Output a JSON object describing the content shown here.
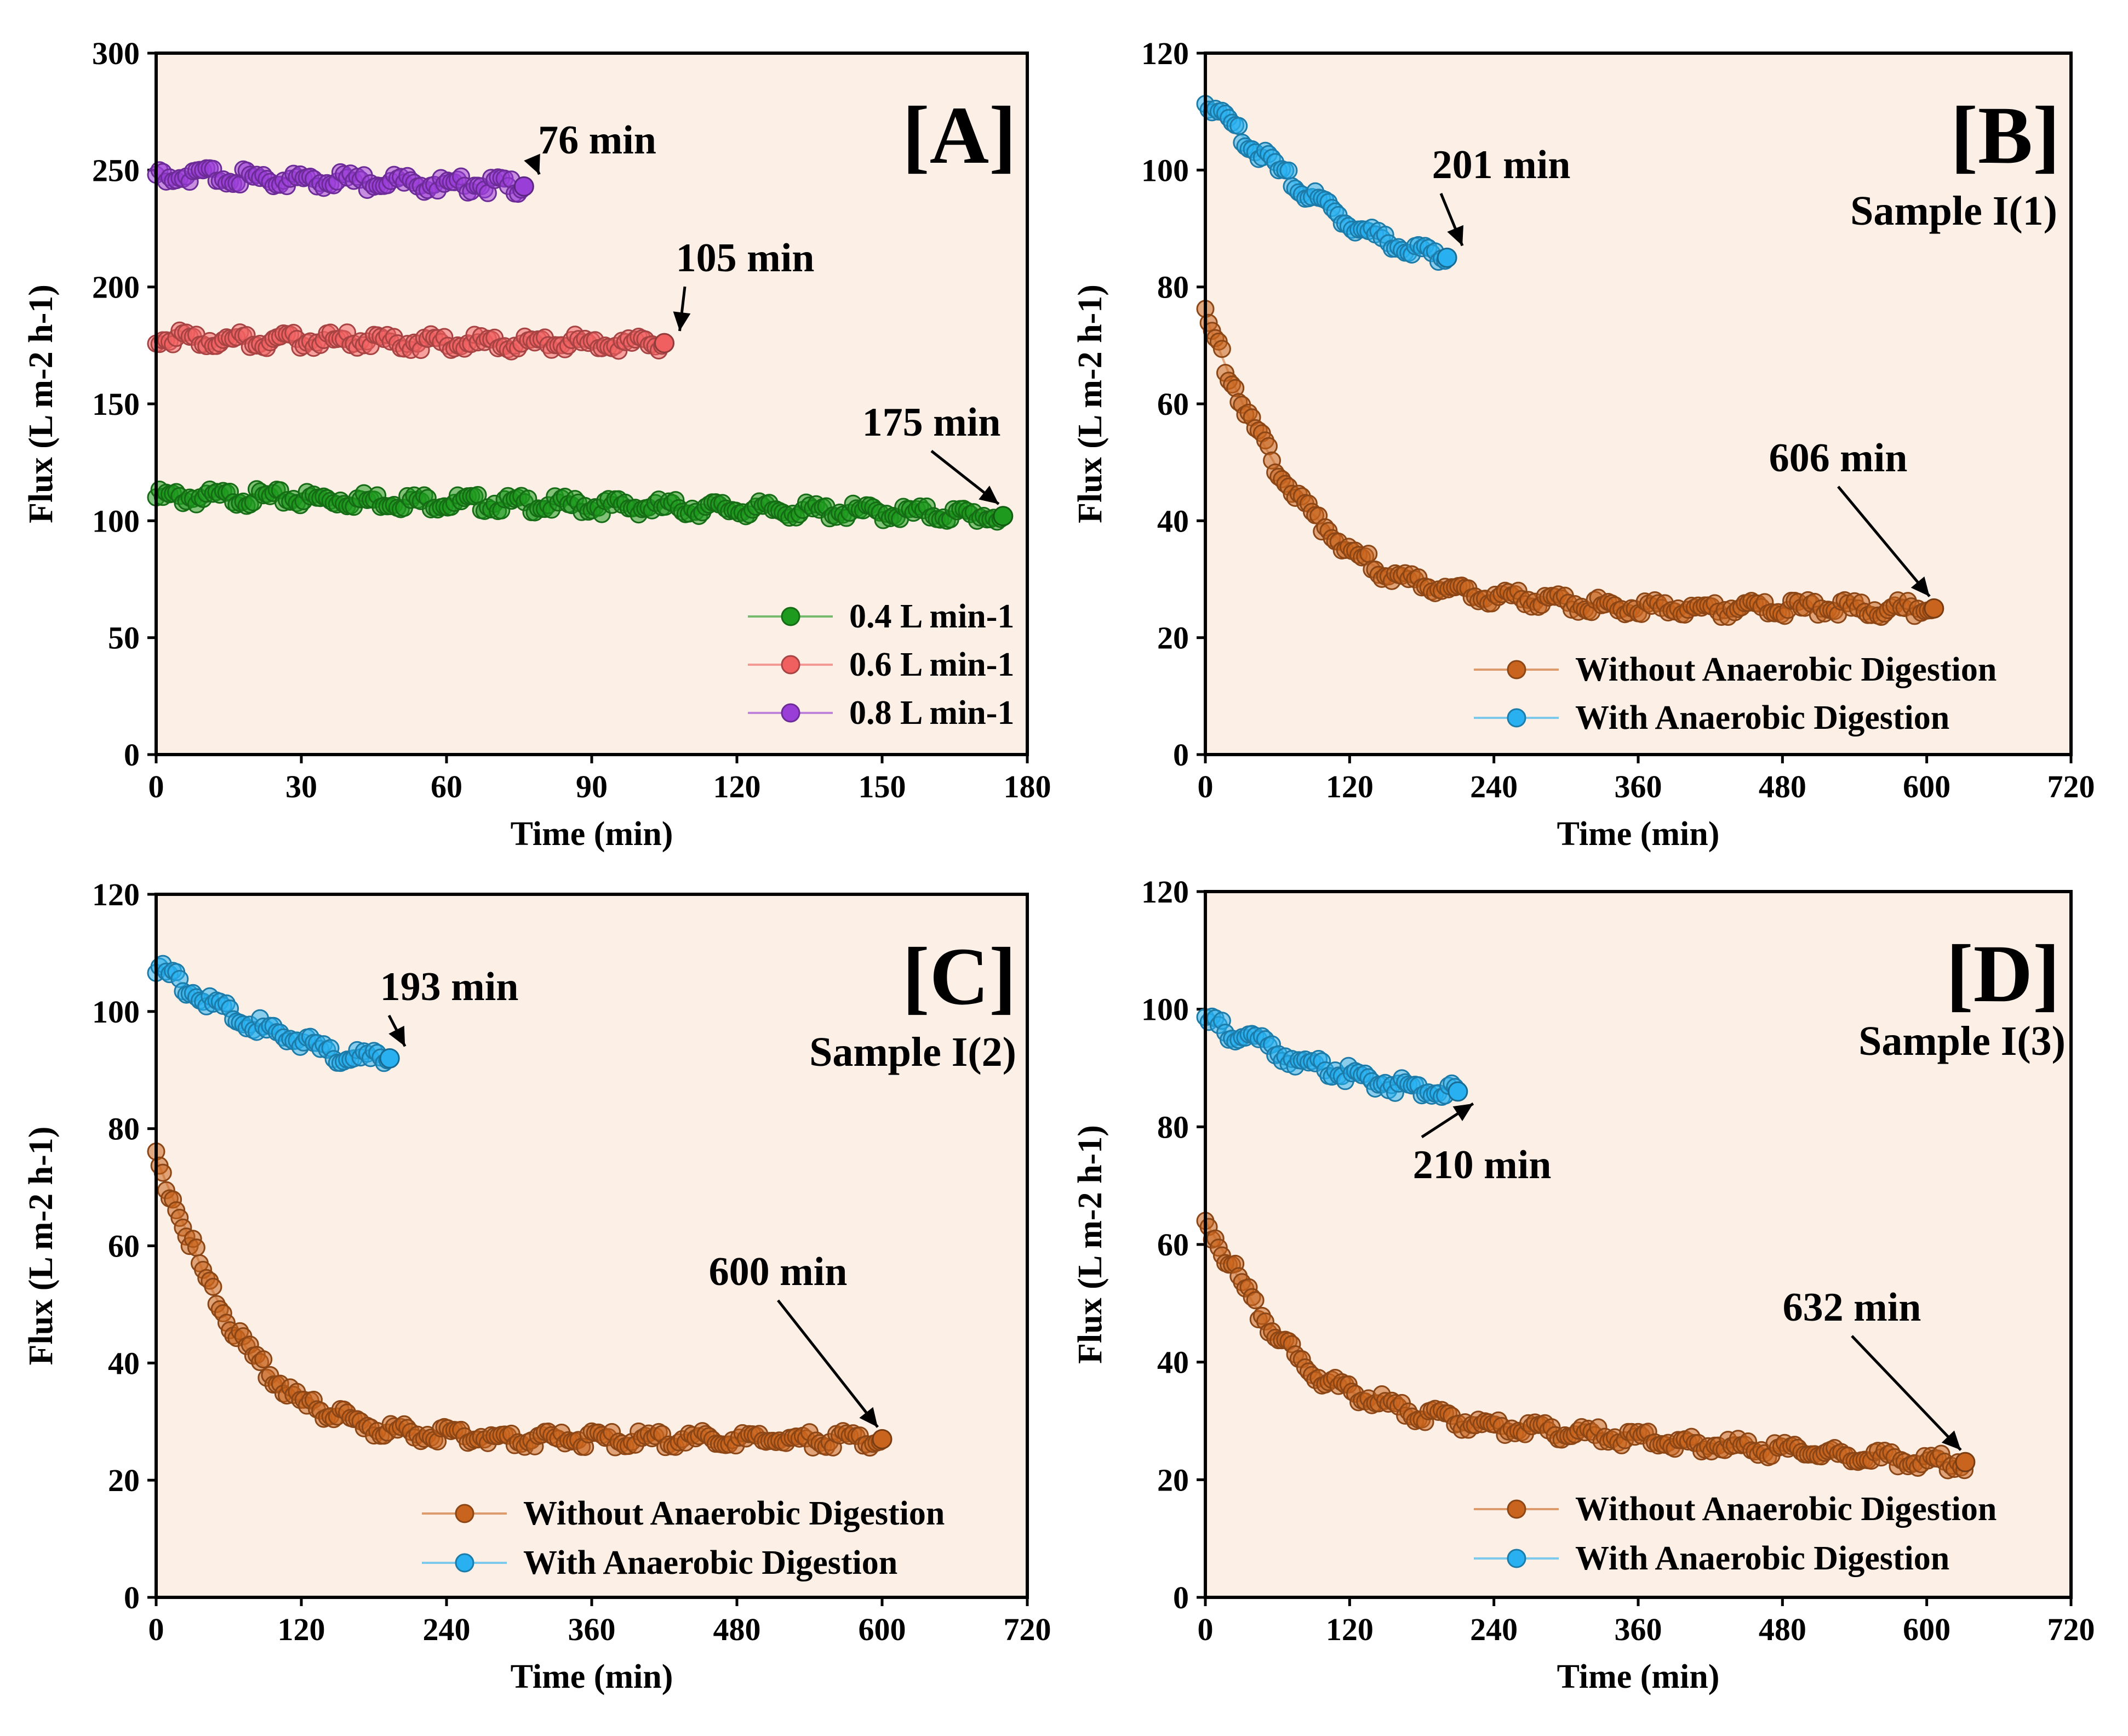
{
  "figure": {
    "background": "#ffffff",
    "plot_background": "#fcefe6"
  },
  "chart_data": [
    {
      "type": "scatter",
      "panel": "[A]",
      "sample": "",
      "xlabel": "Time (min)",
      "ylabel": "Flux (L m-2 h-1)",
      "xlim": [
        0,
        180
      ],
      "ylim": [
        0,
        300
      ],
      "xticks": [
        "0",
        "30",
        "60",
        "90",
        "120",
        "150",
        "180"
      ],
      "yticks": [
        "0",
        "50",
        "100",
        "150",
        "200",
        "250",
        "300"
      ],
      "grid": false,
      "legend_position": "bottom-right",
      "series": [
        {
          "name": "0.4 L min-1",
          "color": "#1e9a1e",
          "x": [
            0,
            20,
            40,
            60,
            80,
            100,
            120,
            140,
            160,
            175
          ],
          "y": [
            110,
            110,
            109,
            108,
            107,
            106,
            105,
            104,
            103,
            102
          ],
          "end_label": "175 min"
        },
        {
          "name": "0.6 L min-1",
          "color": "#f06060",
          "x": [
            0,
            20,
            40,
            60,
            80,
            105
          ],
          "y": [
            178,
            177,
            177,
            176,
            176,
            176
          ],
          "end_label": "105 min"
        },
        {
          "name": "0.8 L min-1",
          "color": "#9a3ed8",
          "x": [
            0,
            15,
            30,
            45,
            60,
            76
          ],
          "y": [
            248,
            247,
            246,
            245,
            244,
            243
          ],
          "end_label": "76 min"
        }
      ]
    },
    {
      "type": "scatter",
      "panel": "[B]",
      "sample": "Sample I(1)",
      "xlabel": "Time (min)",
      "ylabel": "Flux (L m-2 h-1)",
      "xlim": [
        0,
        720
      ],
      "ylim": [
        0,
        120
      ],
      "xticks": [
        "0",
        "120",
        "240",
        "360",
        "480",
        "600",
        "720"
      ],
      "yticks": [
        "0",
        "20",
        "40",
        "60",
        "80",
        "100",
        "120"
      ],
      "grid": false,
      "legend_position": "bottom-right",
      "series": [
        {
          "name": "Without Anaerobic Digestion",
          "color": "#c8641e",
          "x": [
            0,
            20,
            40,
            60,
            80,
            100,
            120,
            150,
            180,
            210,
            240,
            300,
            360,
            420,
            480,
            540,
            606
          ],
          "y": [
            75,
            65,
            56,
            49,
            43,
            39,
            35,
            31,
            29,
            28,
            27,
            26,
            25,
            25,
            25,
            25,
            25
          ],
          "end_label": "606 min"
        },
        {
          "name": "With Anaerobic Digestion",
          "color": "#28b0f0",
          "x": [
            0,
            20,
            40,
            60,
            80,
            100,
            120,
            140,
            160,
            180,
            201
          ],
          "y": [
            112,
            108,
            104,
            100,
            97,
            94,
            91,
            89,
            87,
            86,
            85
          ],
          "end_label": "201 min"
        }
      ]
    },
    {
      "type": "scatter",
      "panel": "[C]",
      "sample": "Sample I(2)",
      "xlabel": "Time (min)",
      "ylabel": "Flux (L m-2 h-1)",
      "xlim": [
        0,
        720
      ],
      "ylim": [
        0,
        120
      ],
      "xticks": [
        "0",
        "120",
        "240",
        "360",
        "480",
        "600",
        "720"
      ],
      "yticks": [
        "0",
        "20",
        "40",
        "60",
        "80",
        "100",
        "120"
      ],
      "grid": false,
      "legend_position": "bottom-right",
      "series": [
        {
          "name": "Without Anaerobic Digestion",
          "color": "#c8641e",
          "x": [
            0,
            20,
            40,
            60,
            80,
            100,
            120,
            150,
            180,
            210,
            240,
            300,
            360,
            420,
            480,
            540,
            600
          ],
          "y": [
            75,
            65,
            55,
            47,
            41,
            37,
            33,
            31,
            29,
            28,
            28,
            27,
            27,
            27,
            27,
            27,
            27
          ],
          "end_label": "600 min"
        },
        {
          "name": "With Anaerobic Digestion",
          "color": "#28b0f0",
          "x": [
            0,
            20,
            40,
            60,
            80,
            100,
            120,
            140,
            160,
            193
          ],
          "y": [
            108,
            105,
            102,
            100,
            98,
            96,
            95,
            93,
            92,
            92
          ],
          "end_label": "193 min"
        }
      ]
    },
    {
      "type": "scatter",
      "panel": "[D]",
      "sample": "Sample I(3)",
      "xlabel": "Time (min)",
      "ylabel": "Flux (L m-2 h-1)",
      "xlim": [
        0,
        720
      ],
      "ylim": [
        0,
        120
      ],
      "xticks": [
        "0",
        "120",
        "240",
        "360",
        "480",
        "600",
        "720"
      ],
      "yticks": [
        "0",
        "20",
        "40",
        "60",
        "80",
        "100",
        "120"
      ],
      "grid": false,
      "legend_position": "bottom-right",
      "series": [
        {
          "name": "Without Anaerobic Digestion",
          "color": "#c8641e",
          "x": [
            0,
            20,
            40,
            60,
            80,
            100,
            120,
            150,
            180,
            240,
            300,
            360,
            420,
            480,
            540,
            600,
            632
          ],
          "y": [
            64,
            57,
            50,
            44,
            40,
            37,
            35,
            33,
            31,
            29,
            28,
            27,
            26,
            25,
            24,
            23,
            23
          ],
          "end_label": "632 min"
        },
        {
          "name": "With Anaerobic Digestion",
          "color": "#28b0f0",
          "x": [
            0,
            20,
            40,
            60,
            80,
            100,
            120,
            140,
            160,
            180,
            210
          ],
          "y": [
            98,
            96,
            95,
            93,
            91,
            90,
            89,
            88,
            87,
            86,
            86
          ],
          "end_label": "210 min"
        }
      ]
    }
  ]
}
